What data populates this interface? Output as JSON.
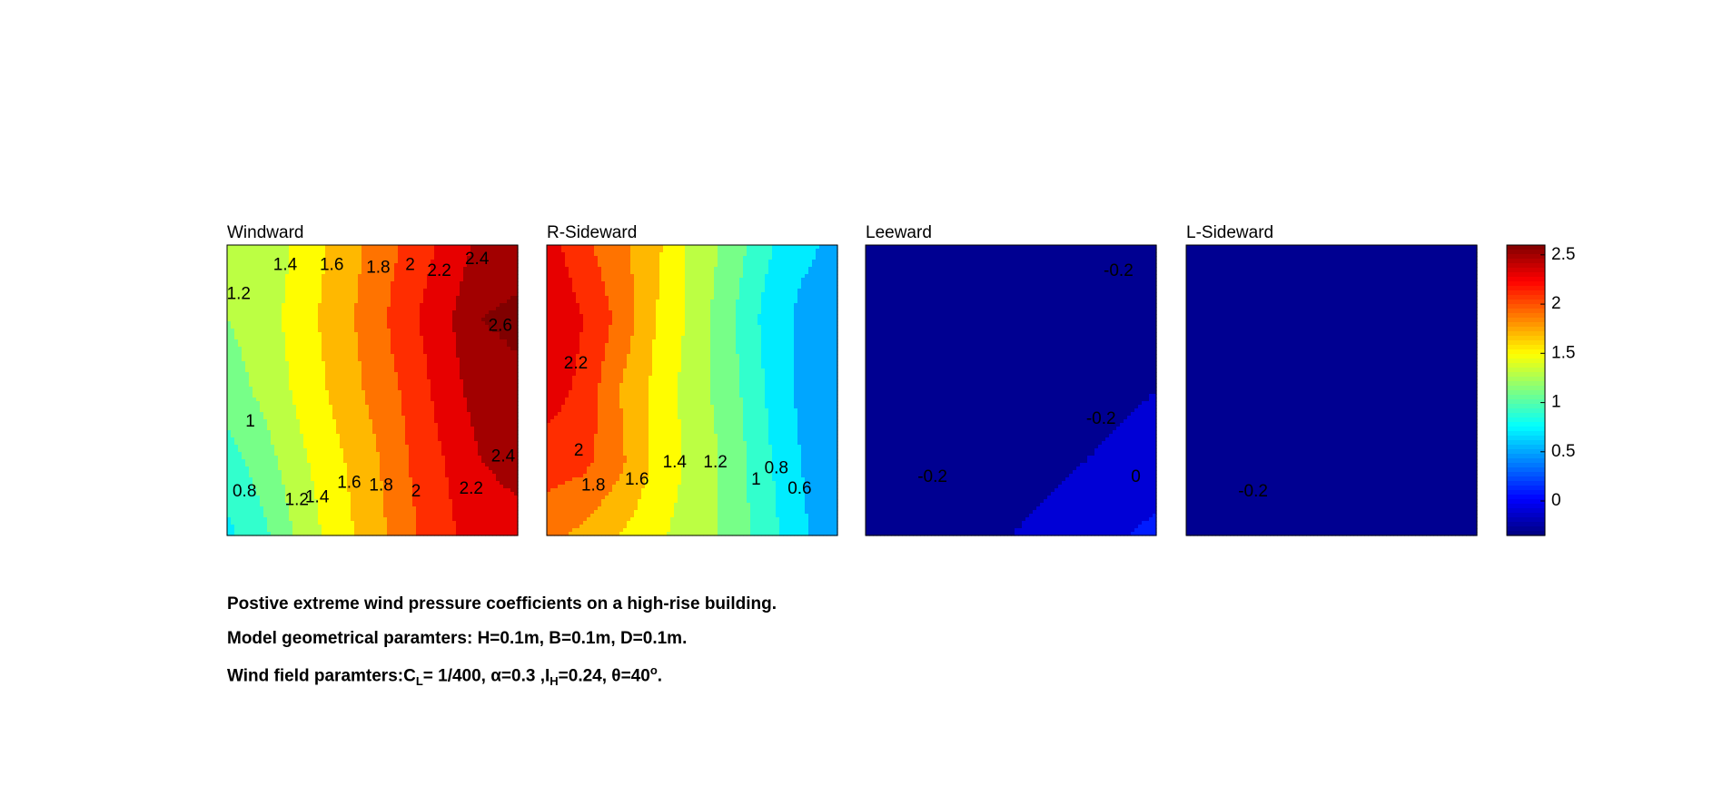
{
  "chart_data": {
    "type": "heatmap",
    "chart_kind": "filled-contour",
    "colormap": "jet",
    "panels": [
      {
        "title": "Windward",
        "values": [
          [
            1.2,
            1.25,
            1.45,
            1.65,
            1.85,
            2.05,
            2.25,
            2.45,
            2.5
          ],
          [
            1.2,
            1.3,
            1.5,
            1.7,
            1.9,
            2.15,
            2.35,
            2.6,
            2.65
          ],
          [
            1.1,
            1.25,
            1.45,
            1.65,
            1.85,
            2.05,
            2.3,
            2.5,
            2.55
          ],
          [
            0.9,
            1.1,
            1.35,
            1.55,
            1.75,
            2.0,
            2.2,
            2.4,
            2.45
          ],
          [
            0.75,
            0.95,
            1.25,
            1.5,
            1.7,
            1.95,
            2.15,
            2.3,
            2.35
          ]
        ],
        "contour_labels": [
          {
            "text": "1.4",
            "x": 0.2,
            "y": 0.07
          },
          {
            "text": "1.6",
            "x": 0.36,
            "y": 0.07
          },
          {
            "text": "1.8",
            "x": 0.52,
            "y": 0.08
          },
          {
            "text": "2",
            "x": 0.63,
            "y": 0.07
          },
          {
            "text": "2.2",
            "x": 0.73,
            "y": 0.09
          },
          {
            "text": "2.4",
            "x": 0.86,
            "y": 0.05
          },
          {
            "text": "1.2",
            "x": 0.04,
            "y": 0.17
          },
          {
            "text": "2.6",
            "x": 0.94,
            "y": 0.28
          },
          {
            "text": "1",
            "x": 0.08,
            "y": 0.61
          },
          {
            "text": "2.4",
            "x": 0.95,
            "y": 0.73
          },
          {
            "text": "0.8",
            "x": 0.06,
            "y": 0.85
          },
          {
            "text": "1.2",
            "x": 0.24,
            "y": 0.88
          },
          {
            "text": "1.4",
            "x": 0.31,
            "y": 0.87
          },
          {
            "text": "1.6",
            "x": 0.42,
            "y": 0.82
          },
          {
            "text": "1.8",
            "x": 0.53,
            "y": 0.83
          },
          {
            "text": "2",
            "x": 0.65,
            "y": 0.85
          },
          {
            "text": "2.2",
            "x": 0.84,
            "y": 0.84
          }
        ]
      },
      {
        "title": "R-Sideward",
        "values": [
          [
            2.3,
            2.05,
            1.85,
            1.65,
            1.35,
            1.15,
            0.85,
            0.65,
            0.55
          ],
          [
            2.4,
            2.2,
            1.95,
            1.6,
            1.35,
            1.05,
            0.75,
            0.55,
            0.5
          ],
          [
            2.3,
            2.15,
            1.8,
            1.55,
            1.3,
            1.1,
            0.8,
            0.55,
            0.45
          ],
          [
            2.1,
            2.05,
            1.85,
            1.55,
            1.35,
            1.15,
            0.85,
            0.6,
            0.4
          ],
          [
            1.85,
            1.75,
            1.6,
            1.45,
            1.3,
            1.15,
            0.9,
            0.65,
            0.4
          ]
        ],
        "contour_labels": [
          {
            "text": "2.2",
            "x": 0.1,
            "y": 0.41
          },
          {
            "text": "2",
            "x": 0.11,
            "y": 0.71
          },
          {
            "text": "1.8",
            "x": 0.16,
            "y": 0.83
          },
          {
            "text": "1.6",
            "x": 0.31,
            "y": 0.81
          },
          {
            "text": "1.4",
            "x": 0.44,
            "y": 0.75
          },
          {
            "text": "1.2",
            "x": 0.58,
            "y": 0.75
          },
          {
            "text": "1",
            "x": 0.72,
            "y": 0.81
          },
          {
            "text": "0.8",
            "x": 0.79,
            "y": 0.77
          },
          {
            "text": "0.6",
            "x": 0.87,
            "y": 0.84
          }
        ]
      },
      {
        "title": "Leeward",
        "values": [
          [
            -0.25,
            -0.3,
            -0.3,
            -0.3,
            -0.3,
            -0.3,
            -0.3,
            -0.3,
            -0.25
          ],
          [
            -0.27,
            -0.32,
            -0.33,
            -0.33,
            -0.33,
            -0.33,
            -0.32,
            -0.32,
            -0.3
          ],
          [
            -0.3,
            -0.32,
            -0.33,
            -0.33,
            -0.33,
            -0.33,
            -0.3,
            -0.25,
            -0.2
          ],
          [
            -0.25,
            -0.28,
            -0.32,
            -0.33,
            -0.3,
            -0.25,
            -0.2,
            -0.15,
            -0.1
          ],
          [
            -0.22,
            -0.25,
            -0.27,
            -0.25,
            -0.2,
            -0.15,
            -0.08,
            -0.02,
            0.05
          ]
        ],
        "contour_labels": [
          {
            "text": "-0.2",
            "x": 0.87,
            "y": 0.09
          },
          {
            "text": "-0.2",
            "x": 0.81,
            "y": 0.6
          },
          {
            "text": "-0.2",
            "x": 0.23,
            "y": 0.8
          },
          {
            "text": "0",
            "x": 0.93,
            "y": 0.8
          }
        ]
      },
      {
        "title": "L-Sideward",
        "values": [
          [
            -0.3,
            -0.32,
            -0.32,
            -0.32,
            -0.32,
            -0.32,
            -0.32,
            -0.32,
            -0.3
          ],
          [
            -0.32,
            -0.33,
            -0.33,
            -0.33,
            -0.33,
            -0.33,
            -0.33,
            -0.33,
            -0.32
          ],
          [
            -0.32,
            -0.33,
            -0.33,
            -0.33,
            -0.33,
            -0.33,
            -0.33,
            -0.33,
            -0.32
          ],
          [
            -0.2,
            -0.26,
            -0.33,
            -0.33,
            -0.33,
            -0.33,
            -0.33,
            -0.33,
            -0.25
          ],
          [
            -0.22,
            -0.25,
            -0.32,
            -0.33,
            -0.33,
            -0.33,
            -0.33,
            -0.33,
            -0.32
          ]
        ],
        "contour_labels": [
          {
            "text": "-0.2",
            "x": 0.23,
            "y": 0.85
          }
        ]
      }
    ],
    "colorbar": {
      "ticks": [
        2.5,
        2,
        1.5,
        1,
        0.5,
        0
      ],
      "tick_labels": [
        "2.5",
        "2",
        "1.5",
        "1",
        "0.5",
        "0"
      ],
      "range": [
        -0.35,
        2.6
      ]
    }
  },
  "caption": {
    "line1": "Postive extreme  wind pressure coefficients on a high-rise building.",
    "line2": "Model geometrical paramters: H=0.1m, B=0.1m, D=0.1m.",
    "line3_prefix": "Wind field paramters:C",
    "line3_sub1": "L",
    "line3_mid1": "= 1/400, α=0.3 ,I",
    "line3_sub2": "H",
    "line3_mid2": "=0.24, θ=40",
    "line3_sup": "o",
    "line3_end": "."
  }
}
